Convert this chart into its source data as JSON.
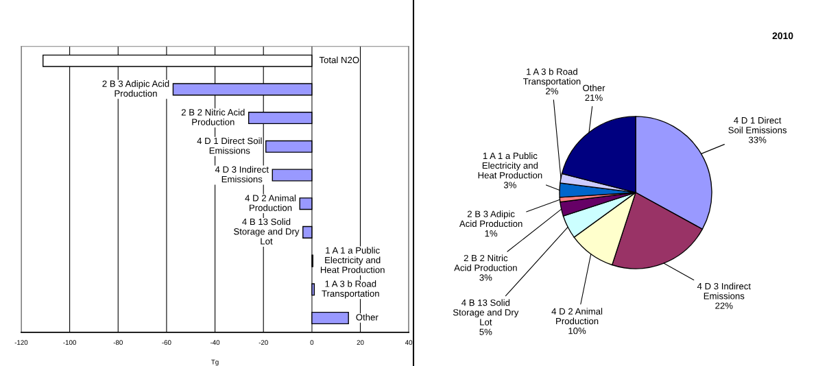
{
  "chart_data": [
    {
      "type": "bar",
      "orientation": "horizontal",
      "xlabel": "Tg",
      "categories": [
        "Total N2O",
        "2 B 3 Adipic Acid Production",
        "2 B 2 Nitric Acid Production",
        "4 D 1 Direct Soil Emissions",
        "4 D 3 Indirect Emissions",
        "4 D 2 Animal Production",
        "4 B 13 Solid Storage and Dry Lot",
        "1 A 1 a Public Electricity and Heat Production",
        "1 A 3 b Road Transportation",
        "Other"
      ],
      "values": [
        -111,
        -57.3,
        -26.1,
        -19,
        -16.3,
        -5,
        -3.7,
        0.4,
        1,
        15.1
      ],
      "colors": [
        "#ffffff",
        "#9999ff",
        "#9999ff",
        "#9999ff",
        "#9999ff",
        "#9999ff",
        "#9999ff",
        "#9999ff",
        "#9999ff",
        "#9999ff"
      ],
      "xlim": [
        -120,
        40
      ],
      "xticks": [
        -120,
        -100,
        -80,
        -60,
        -40,
        -20,
        0,
        20,
        40
      ],
      "grid": "x",
      "legend": false
    },
    {
      "type": "pie",
      "title": "2010",
      "categories": [
        "4 D 1 Direct Soil Emissions",
        "4 D 3 Indirect Emissions",
        "4 D 2 Animal Production",
        "4 B 13 Solid Storage and Dry Lot",
        "2 B 2 Nitric Acid Production",
        "2 B 3 Adipic Acid Production",
        "1 A 1 a Public Electricity and Heat Production",
        "1 A 3 b Road Transportation",
        "Other"
      ],
      "values": [
        33,
        22,
        10,
        5,
        3,
        1,
        3,
        2,
        21
      ],
      "colors": [
        "#9999ff",
        "#993366",
        "#ffffcc",
        "#ccffff",
        "#660066",
        "#ff8080",
        "#0066cc",
        "#ccccff",
        "#000080"
      ],
      "value_labels": [
        "33%",
        "22%",
        "10%",
        "5%",
        "3%",
        "1%",
        "3%",
        "2%",
        "21%"
      ],
      "legend": false
    }
  ]
}
